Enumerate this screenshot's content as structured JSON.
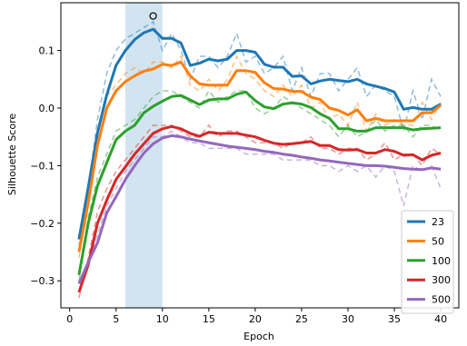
{
  "chart_data": {
    "type": "line",
    "title": "",
    "xlabel": "Epoch",
    "ylabel": "Silhouette Score",
    "xlim": [
      -0.95,
      41.95
    ],
    "ylim": [
      -0.347,
      0.183
    ],
    "xticks": [
      0,
      5,
      10,
      15,
      20,
      25,
      30,
      35,
      40
    ],
    "xtick_labels": [
      "0",
      "5",
      "10",
      "15",
      "20",
      "25",
      "30",
      "35",
      "40"
    ],
    "yticks": [
      -0.3,
      -0.2,
      -0.1,
      0.0,
      0.1
    ],
    "ytick_labels": [
      "−0.3",
      "−0.2",
      "−0.1",
      "0.0",
      "0.1"
    ],
    "highlight_span": [
      6,
      10
    ],
    "marker": {
      "x": 9,
      "y": 0.16
    },
    "legend_position": "lower-right",
    "x": [
      1,
      2,
      3,
      4,
      5,
      6,
      7,
      8,
      9,
      10,
      11,
      12,
      13,
      14,
      15,
      16,
      17,
      18,
      19,
      20,
      21,
      22,
      23,
      24,
      25,
      26,
      27,
      28,
      29,
      30,
      31,
      32,
      33,
      34,
      35,
      36,
      37,
      38,
      39,
      40
    ],
    "series": [
      {
        "name": "23",
        "color": "#1f77b4",
        "smoothed": [
          -0.228,
          -0.138,
          -0.043,
          0.023,
          0.074,
          0.1,
          0.119,
          0.131,
          0.137,
          0.121,
          0.121,
          0.113,
          0.074,
          0.078,
          0.085,
          0.082,
          0.085,
          0.1,
          0.1,
          0.097,
          0.076,
          0.071,
          0.071,
          0.055,
          0.056,
          0.042,
          0.047,
          0.05,
          0.048,
          0.046,
          0.05,
          0.042,
          0.038,
          0.034,
          0.028,
          -0.002,
          0.001,
          -0.002,
          -0.002,
          0.007
        ],
        "raw": [
          -0.24,
          -0.14,
          -0.02,
          0.06,
          0.1,
          0.12,
          0.13,
          0.14,
          0.15,
          0.1,
          0.13,
          0.1,
          0.05,
          0.09,
          0.09,
          0.07,
          0.09,
          0.13,
          0.08,
          0.09,
          0.06,
          0.07,
          0.09,
          0.03,
          0.07,
          0.02,
          0.06,
          0.06,
          0.03,
          0.05,
          0.07,
          0.02,
          0.04,
          0.03,
          0.02,
          -0.04,
          0.03,
          -0.02,
          0.05,
          0.02
        ]
      },
      {
        "name": "50",
        "color": "#ff7f0e",
        "smoothed": [
          -0.25,
          -0.165,
          -0.065,
          0.0,
          0.03,
          0.046,
          0.056,
          0.064,
          0.068,
          0.076,
          0.074,
          0.08,
          0.056,
          0.042,
          0.04,
          0.04,
          0.04,
          0.065,
          0.065,
          0.062,
          0.044,
          0.034,
          0.033,
          0.029,
          0.029,
          0.019,
          0.015,
          0.0,
          -0.004,
          -0.012,
          -0.003,
          -0.022,
          -0.018,
          -0.022,
          -0.022,
          -0.022,
          -0.022,
          -0.008,
          -0.008,
          0.005
        ],
        "raw": [
          -0.26,
          -0.16,
          -0.04,
          0.02,
          0.04,
          0.06,
          0.07,
          0.06,
          0.08,
          0.08,
          0.07,
          0.09,
          0.04,
          0.03,
          0.05,
          0.03,
          0.05,
          0.09,
          0.06,
          0.05,
          0.03,
          0.02,
          0.04,
          0.02,
          0.04,
          0.0,
          0.01,
          -0.02,
          -0.01,
          -0.03,
          0.01,
          -0.04,
          -0.01,
          -0.03,
          -0.02,
          -0.03,
          -0.03,
          0.01,
          -0.02,
          0.01
        ]
      },
      {
        "name": "100",
        "color": "#2ca02c",
        "smoothed": [
          -0.29,
          -0.2,
          -0.135,
          -0.095,
          -0.055,
          -0.04,
          -0.03,
          -0.008,
          0.003,
          0.012,
          0.02,
          0.022,
          0.014,
          0.006,
          0.014,
          0.016,
          0.016,
          0.024,
          0.028,
          0.013,
          0.002,
          -0.001,
          0.007,
          0.009,
          0.007,
          0.001,
          -0.01,
          -0.018,
          -0.036,
          -0.036,
          -0.04,
          -0.04,
          -0.034,
          -0.034,
          -0.034,
          -0.034,
          -0.038,
          -0.036,
          -0.035,
          -0.034
        ],
        "raw": [
          -0.3,
          -0.19,
          -0.12,
          -0.08,
          -0.04,
          -0.03,
          -0.02,
          0.0,
          0.02,
          0.03,
          0.03,
          0.02,
          0.01,
          0.0,
          0.03,
          0.01,
          0.02,
          0.03,
          0.03,
          0.0,
          -0.01,
          0.0,
          0.02,
          0.01,
          0.0,
          -0.01,
          -0.02,
          -0.03,
          -0.05,
          -0.03,
          -0.05,
          -0.04,
          -0.02,
          -0.04,
          -0.03,
          -0.03,
          -0.05,
          -0.03,
          -0.03,
          -0.04
        ]
      },
      {
        "name": "300",
        "color": "#d62728",
        "smoothed": [
          -0.32,
          -0.272,
          -0.2,
          -0.16,
          -0.124,
          -0.102,
          -0.08,
          -0.062,
          -0.044,
          -0.036,
          -0.032,
          -0.036,
          -0.044,
          -0.049,
          -0.042,
          -0.044,
          -0.044,
          -0.044,
          -0.047,
          -0.05,
          -0.056,
          -0.061,
          -0.063,
          -0.062,
          -0.06,
          -0.058,
          -0.065,
          -0.065,
          -0.072,
          -0.073,
          -0.072,
          -0.078,
          -0.078,
          -0.072,
          -0.075,
          -0.082,
          -0.081,
          -0.09,
          -0.082,
          -0.078
        ],
        "raw": [
          -0.33,
          -0.26,
          -0.18,
          -0.14,
          -0.11,
          -0.09,
          -0.07,
          -0.05,
          -0.03,
          -0.03,
          -0.03,
          -0.04,
          -0.05,
          -0.05,
          -0.03,
          -0.05,
          -0.04,
          -0.04,
          -0.05,
          -0.06,
          -0.06,
          -0.06,
          -0.07,
          -0.06,
          -0.06,
          -0.05,
          -0.07,
          -0.07,
          -0.08,
          -0.07,
          -0.07,
          -0.09,
          -0.08,
          -0.06,
          -0.09,
          -0.08,
          -0.08,
          -0.1,
          -0.07,
          -0.08
        ]
      },
      {
        "name": "500",
        "color": "#9467bd",
        "smoothed": [
          -0.305,
          -0.268,
          -0.234,
          -0.182,
          -0.154,
          -0.124,
          -0.1,
          -0.078,
          -0.062,
          -0.052,
          -0.048,
          -0.05,
          -0.054,
          -0.057,
          -0.06,
          -0.063,
          -0.066,
          -0.068,
          -0.07,
          -0.072,
          -0.075,
          -0.077,
          -0.08,
          -0.082,
          -0.085,
          -0.087,
          -0.09,
          -0.092,
          -0.094,
          -0.096,
          -0.098,
          -0.1,
          -0.1,
          -0.101,
          -0.103,
          -0.105,
          -0.106,
          -0.107,
          -0.104,
          -0.106
        ],
        "raw": [
          -0.32,
          -0.27,
          -0.22,
          -0.17,
          -0.14,
          -0.11,
          -0.09,
          -0.07,
          -0.05,
          -0.05,
          -0.04,
          -0.05,
          -0.06,
          -0.06,
          -0.07,
          -0.07,
          -0.07,
          -0.07,
          -0.08,
          -0.08,
          -0.08,
          -0.08,
          -0.09,
          -0.09,
          -0.09,
          -0.09,
          -0.1,
          -0.1,
          -0.11,
          -0.1,
          -0.11,
          -0.1,
          -0.12,
          -0.1,
          -0.11,
          -0.17,
          -0.1,
          -0.11,
          -0.1,
          -0.14
        ]
      }
    ]
  }
}
